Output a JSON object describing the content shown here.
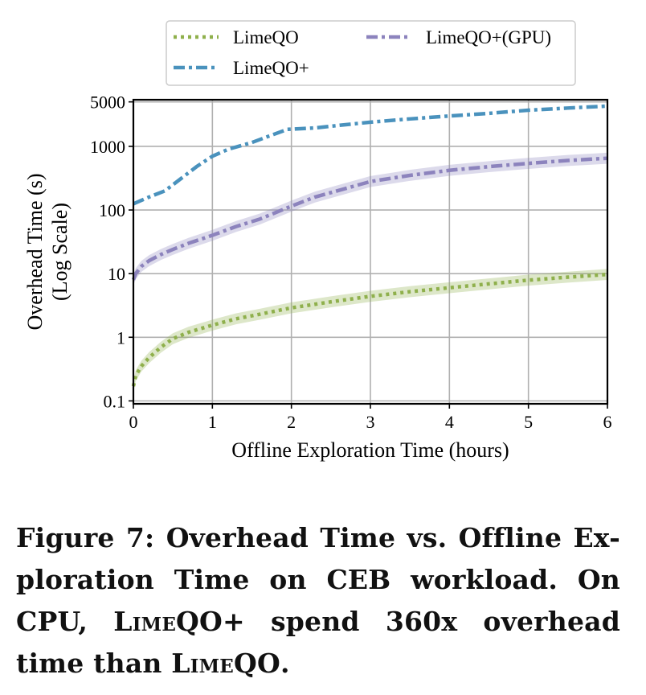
{
  "chart_data": {
    "type": "line",
    "xlabel": "Offline Exploration Time (hours)",
    "ylabel_lines": [
      "Overhead Time (s)",
      "(Log Scale)"
    ],
    "xlim": [
      0,
      6
    ],
    "ylim": [
      0.09,
      5400
    ],
    "yscale": "log",
    "grid": true,
    "legend_position": "top",
    "xticks": [
      0,
      1,
      2,
      3,
      4,
      5,
      6
    ],
    "xtick_labels": [
      "0",
      "1",
      "2",
      "3",
      "4",
      "5",
      "6"
    ],
    "yticks": [
      0.1,
      1,
      10,
      100,
      1000,
      5000
    ],
    "ytick_labels": [
      "0.1",
      "1",
      "10",
      "100",
      "1000",
      "5000"
    ],
    "series": [
      {
        "name": "LimeQO",
        "color": "#8fb04c",
        "style": "dotted",
        "band": true,
        "x": [
          0.0,
          0.03,
          0.1,
          0.2,
          0.35,
          0.5,
          0.7,
          1.0,
          1.3,
          1.6,
          2.0,
          2.5,
          3.0,
          3.5,
          4.0,
          4.5,
          5.0,
          5.5,
          6.0
        ],
        "y": [
          0.17,
          0.25,
          0.35,
          0.48,
          0.7,
          0.95,
          1.2,
          1.55,
          1.95,
          2.3,
          2.9,
          3.6,
          4.4,
          5.2,
          6.0,
          6.9,
          7.9,
          8.8,
          9.7
        ]
      },
      {
        "name": "LimeQO+",
        "color": "#4a92bd",
        "style": "dashdot",
        "band": false,
        "x": [
          0.0,
          0.2,
          0.4,
          0.6,
          0.8,
          1.0,
          1.2,
          1.5,
          1.75,
          1.95,
          2.3,
          2.7,
          3.0,
          3.5,
          4.0,
          4.5,
          5.0,
          5.5,
          6.0
        ],
        "y": [
          125,
          160,
          200,
          310,
          480,
          700,
          900,
          1150,
          1500,
          1850,
          1950,
          2200,
          2400,
          2700,
          3000,
          3300,
          3700,
          4000,
          4300
        ]
      },
      {
        "name": "LimeQO+(GPU)",
        "color": "#8c83bd",
        "style": "dashdot",
        "band": true,
        "x": [
          0.0,
          0.03,
          0.1,
          0.2,
          0.35,
          0.5,
          0.7,
          1.0,
          1.3,
          1.6,
          2.0,
          2.3,
          2.7,
          3.0,
          3.5,
          4.0,
          4.5,
          5.0,
          5.5,
          6.0
        ],
        "y": [
          8,
          10,
          13,
          16,
          20,
          24,
          30,
          40,
          55,
          72,
          115,
          160,
          220,
          280,
          350,
          420,
          480,
          540,
          600,
          650
        ]
      }
    ],
    "legend_order": [
      "LimeQO",
      "LimeQO+(GPU)",
      "LimeQO+"
    ]
  },
  "caption": {
    "lines": [
      [
        {
          "t": "Figure 7: Overhead Time vs. Offline Ex-",
          "sc": false
        }
      ],
      [
        {
          "t": "ploration Time on CEB workload. On",
          "sc": false
        }
      ],
      [
        {
          "t": "CPU, ",
          "sc": false
        },
        {
          "t": "LimeQO+",
          "sc": true
        },
        {
          "t": " spend 360x overhead",
          "sc": false
        }
      ],
      [
        {
          "t": "time than ",
          "sc": false
        },
        {
          "t": "LimeQO",
          "sc": true
        },
        {
          "t": ".",
          "sc": false
        }
      ]
    ]
  }
}
